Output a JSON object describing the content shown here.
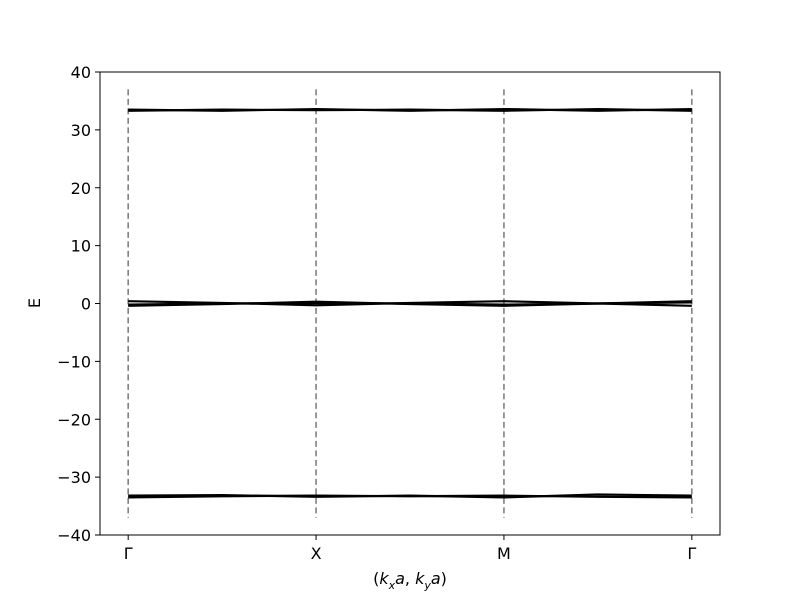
{
  "chart_data": {
    "type": "line",
    "title": "",
    "xlabel": {
      "k1": "k",
      "s1": "x",
      "a1": "a",
      "k2": "k",
      "s2": "y",
      "a2": "a"
    },
    "ylabel": "E",
    "ylim": [
      -40,
      40
    ],
    "yticks": [
      -40,
      -30,
      -20,
      -10,
      0,
      10,
      20,
      30,
      40
    ],
    "ytick_labels": [
      "−40",
      "−30",
      "−20",
      "−10",
      "0",
      "10",
      "20",
      "30",
      "40"
    ],
    "xlim": [
      -0.15,
      3.15
    ],
    "x_ticks": [
      {
        "label": "Γ",
        "x": 0
      },
      {
        "label": "X",
        "x": 1
      },
      {
        "label": "M",
        "x": 2
      },
      {
        "label": "Γ",
        "x": 3
      }
    ],
    "vlines": {
      "x": [
        0,
        1,
        2,
        3
      ],
      "y_range": [
        -37,
        37
      ],
      "color": "#808080",
      "style": "dashed"
    },
    "line_color": "#000000",
    "series": [
      {
        "x": [
          0,
          0.5,
          1,
          1.5,
          2,
          2.5,
          3
        ],
        "y": [
          33.3,
          33.5,
          33.4,
          33.5,
          33.3,
          33.6,
          33.3
        ]
      },
      {
        "x": [
          0,
          0.5,
          1,
          1.5,
          2,
          2.5,
          3
        ],
        "y": [
          33.5,
          33.3,
          33.6,
          33.3,
          33.6,
          33.3,
          33.6
        ]
      },
      {
        "x": [
          0,
          0.5,
          1,
          1.5,
          2,
          2.5,
          3
        ],
        "y": [
          0.4,
          0.1,
          -0.3,
          0.1,
          0.4,
          0.0,
          -0.4
        ]
      },
      {
        "x": [
          0,
          0.5,
          1,
          1.5,
          2,
          2.5,
          3
        ],
        "y": [
          -0.4,
          -0.1,
          0.3,
          -0.1,
          -0.4,
          0.0,
          0.4
        ]
      },
      {
        "x": [
          0,
          0.5,
          1,
          1.5,
          2,
          2.5,
          3
        ],
        "y": [
          -0.2,
          0.0,
          0.1,
          0.0,
          -0.2,
          0.0,
          0.2
        ]
      },
      {
        "x": [
          0,
          0.5,
          1,
          1.5,
          2,
          2.5,
          3
        ],
        "y": [
          -33.2,
          -33.1,
          -33.4,
          -33.2,
          -33.5,
          -33.0,
          -33.2
        ]
      },
      {
        "x": [
          0,
          0.5,
          1,
          1.5,
          2,
          2.5,
          3
        ],
        "y": [
          -33.5,
          -33.3,
          -33.2,
          -33.3,
          -33.2,
          -33.4,
          -33.5
        ]
      }
    ]
  }
}
